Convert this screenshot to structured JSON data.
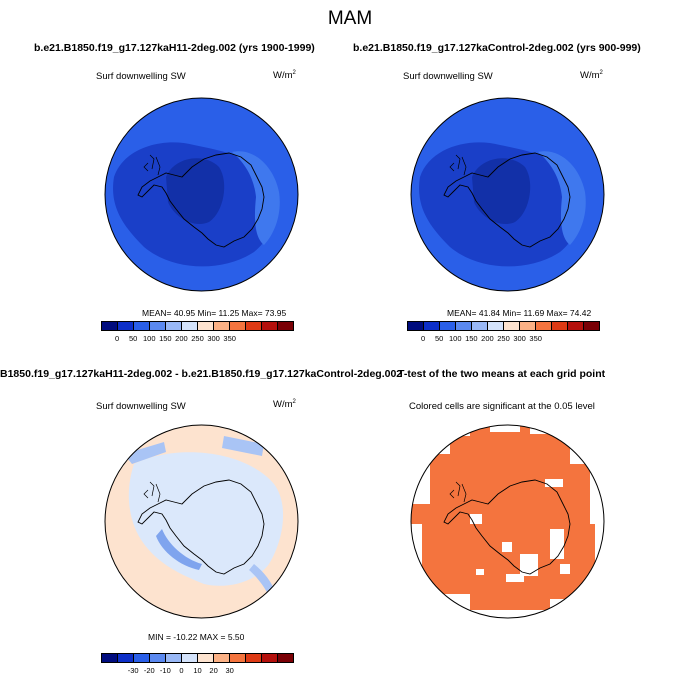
{
  "figure": {
    "title": "MAM"
  },
  "panels": {
    "top_left": {
      "run_title": "b.e21.B1850.f19_g17.127kaH11-2deg.002 (yrs 1900-1999)",
      "subtitle": "Surf downwelling SW",
      "units_base": "W/m",
      "units_exp": "2",
      "stats": "MEAN=  40.95  Min=  11.25  Max=  73.95",
      "field_colors": {
        "outer": "#2a5fe8",
        "inner": "#1a3fc8",
        "core": "#1230a8",
        "plateau": "#3f78ee"
      }
    },
    "top_right": {
      "run_title": "b.e21.B1850.f19_g17.127kaControl-2deg.002 (yrs 900-999)",
      "subtitle": "Surf downwelling SW",
      "units_base": "W/m",
      "units_exp": "2",
      "stats": "MEAN=  41.84  Min=  11.69  Max=  74.42",
      "field_colors": {
        "outer": "#2a5fe8",
        "inner": "#1a3fc8",
        "core": "#1230a8",
        "plateau": "#3f78ee"
      }
    },
    "bottom_left": {
      "run_title": "B1850.f19_g17.127kaH11-2deg.002 - b.e21.B1850.f19_g17.127kaControl-2deg.002",
      "subtitle": "Surf downwelling SW",
      "units_base": "W/m",
      "units_exp": "2",
      "stats": "MIN = -10.22 MAX =   5.50",
      "field_colors": {
        "background": "#fde3cf",
        "interior": "#dbe8fb",
        "negative": "#a9c4f5",
        "strong_negative": "#7fa4ee"
      }
    },
    "bottom_right": {
      "run_title": "T-test of the two means at each grid point",
      "subtitle": "Colored cells are significant at the 0.05 level",
      "field_colors": {
        "significant": "#f4743e",
        "not_significant": "#ffffff"
      }
    }
  },
  "colorbars": {
    "absolute": {
      "labels": [
        "0",
        "50",
        "100",
        "150",
        "200",
        "250",
        "300",
        "350"
      ],
      "colors": [
        "#000c7e",
        "#0d2fc8",
        "#2a5fe8",
        "#5b89f0",
        "#99b8f6",
        "#d4e3fb",
        "#fde3cf",
        "#fbb185",
        "#f4743e",
        "#de3a14",
        "#b4100c",
        "#7a0005"
      ]
    },
    "difference": {
      "labels": [
        "-30",
        "-20",
        "-10",
        "0",
        "10",
        "20",
        "30"
      ],
      "colors": [
        "#000c7e",
        "#0d2fc8",
        "#2a5fe8",
        "#5b89f0",
        "#99b8f6",
        "#d4e3fb",
        "#fde3cf",
        "#fbb185",
        "#f4743e",
        "#de3a14",
        "#b4100c",
        "#7a0005"
      ]
    }
  }
}
